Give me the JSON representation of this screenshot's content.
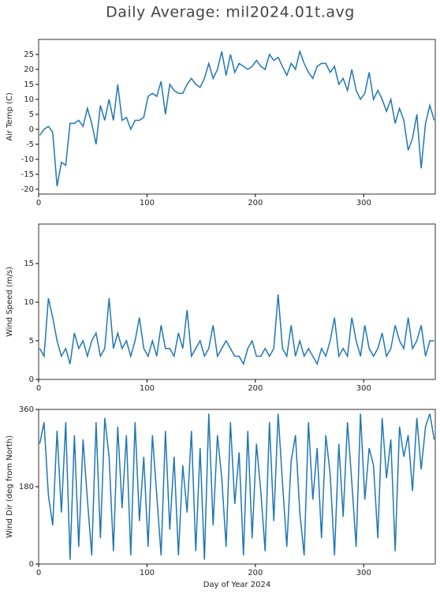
{
  "title": "Daily Average: mil2024.01t.avg",
  "chart_data": [
    {
      "type": "line",
      "ylabel": "Air Temp (C)",
      "color": "#1f77b4",
      "x": [
        1,
        5,
        9,
        13,
        17,
        21,
        25,
        29,
        33,
        37,
        41,
        45,
        49,
        53,
        57,
        61,
        65,
        69,
        73,
        77,
        81,
        85,
        89,
        93,
        97,
        101,
        105,
        109,
        113,
        117,
        121,
        125,
        129,
        133,
        137,
        141,
        145,
        149,
        153,
        157,
        161,
        165,
        169,
        173,
        177,
        181,
        185,
        189,
        193,
        197,
        201,
        205,
        209,
        213,
        217,
        221,
        225,
        229,
        233,
        237,
        241,
        245,
        249,
        253,
        257,
        261,
        265,
        269,
        273,
        277,
        281,
        285,
        289,
        293,
        297,
        301,
        305,
        309,
        313,
        317,
        321,
        325,
        329,
        333,
        337,
        341,
        345,
        349,
        353,
        357,
        361,
        365
      ],
      "values": [
        -2,
        0,
        1,
        -1,
        -19,
        -11,
        -12,
        2,
        2,
        3,
        1,
        7,
        2,
        -5,
        8,
        3,
        10,
        3,
        15,
        3,
        4,
        0,
        3,
        3,
        4,
        11,
        12,
        11,
        16,
        5,
        15,
        13,
        12,
        12,
        15,
        17,
        15,
        14,
        17,
        22,
        17,
        20,
        26,
        18,
        25,
        19,
        22,
        21,
        20,
        21,
        23,
        21,
        20,
        25,
        23,
        24,
        21,
        18,
        22,
        20,
        26,
        22,
        19,
        17,
        21,
        22,
        22,
        19,
        21,
        15,
        17,
        13,
        20,
        13,
        10,
        12,
        19,
        10,
        13,
        10,
        6,
        10,
        2,
        7,
        3,
        -7,
        -3,
        5,
        -13,
        2,
        8,
        3
      ],
      "xlim": [
        0,
        366
      ],
      "ylim": [
        -21.6,
        30
      ],
      "xticks": [
        0,
        100,
        200,
        300
      ],
      "yticks": [
        -20,
        -15,
        -10,
        -5,
        0,
        5,
        10,
        15,
        20,
        25
      ]
    },
    {
      "type": "line",
      "ylabel": "Wind Speed (m/s)",
      "color": "#1f77b4",
      "x": [
        1,
        5,
        9,
        13,
        17,
        21,
        25,
        29,
        33,
        37,
        41,
        45,
        49,
        53,
        57,
        61,
        65,
        69,
        73,
        77,
        81,
        85,
        89,
        93,
        97,
        101,
        105,
        109,
        113,
        117,
        121,
        125,
        129,
        133,
        137,
        141,
        145,
        149,
        153,
        157,
        161,
        165,
        169,
        173,
        177,
        181,
        185,
        189,
        193,
        197,
        201,
        205,
        209,
        213,
        217,
        221,
        225,
        229,
        233,
        237,
        241,
        245,
        249,
        253,
        257,
        261,
        265,
        269,
        273,
        277,
        281,
        285,
        289,
        293,
        297,
        301,
        305,
        309,
        313,
        317,
        321,
        325,
        329,
        333,
        337,
        341,
        345,
        349,
        353,
        357,
        361,
        365
      ],
      "values": [
        4,
        3,
        10.5,
        8,
        5,
        3,
        4,
        2,
        6,
        4,
        5,
        3,
        5,
        6,
        3,
        4,
        10.5,
        4,
        6,
        4,
        5,
        3,
        5,
        8,
        4,
        3,
        5,
        3,
        7,
        4,
        4,
        3,
        6,
        4,
        9,
        3,
        4,
        5,
        3,
        4,
        7,
        3,
        4,
        5,
        4,
        3,
        3,
        2,
        4,
        5,
        3,
        3,
        4,
        3,
        4,
        11,
        4,
        3,
        7,
        3,
        5,
        3,
        4,
        3,
        2,
        4,
        3,
        5,
        8,
        3,
        4,
        3,
        8,
        5,
        3,
        7,
        4,
        3,
        4,
        6,
        3,
        4,
        7,
        5,
        4,
        8,
        4,
        5,
        7,
        3,
        5,
        5
      ],
      "xlim": [
        0,
        366
      ],
      "ylim": [
        0,
        20.1
      ],
      "xticks": [
        0,
        100,
        200,
        300
      ],
      "yticks": [
        0,
        5,
        10,
        15
      ]
    },
    {
      "type": "line",
      "ylabel": "Wind Dir (deg from North)",
      "xlabel": "Day of Year 2024",
      "color": "#1f77b4",
      "x": [
        1,
        5,
        9,
        13,
        17,
        21,
        25,
        29,
        33,
        37,
        41,
        45,
        49,
        53,
        57,
        61,
        65,
        69,
        73,
        77,
        81,
        85,
        89,
        93,
        97,
        101,
        105,
        109,
        113,
        117,
        121,
        125,
        129,
        133,
        137,
        141,
        145,
        149,
        153,
        157,
        161,
        165,
        169,
        173,
        177,
        181,
        185,
        189,
        193,
        197,
        201,
        205,
        209,
        213,
        217,
        221,
        225,
        229,
        233,
        237,
        241,
        245,
        249,
        253,
        257,
        261,
        265,
        269,
        273,
        277,
        281,
        285,
        289,
        293,
        297,
        301,
        305,
        309,
        313,
        317,
        321,
        325,
        329,
        333,
        337,
        341,
        345,
        349,
        353,
        357,
        361,
        365
      ],
      "values": [
        280,
        330,
        160,
        90,
        310,
        120,
        330,
        10,
        300,
        40,
        290,
        150,
        20,
        330,
        60,
        340,
        250,
        30,
        320,
        130,
        300,
        20,
        330,
        100,
        250,
        40,
        300,
        160,
        20,
        310,
        80,
        250,
        20,
        230,
        120,
        310,
        30,
        270,
        10,
        350,
        90,
        300,
        200,
        40,
        330,
        140,
        260,
        20,
        310,
        60,
        280,
        170,
        30,
        330,
        100,
        350,
        190,
        40,
        240,
        300,
        120,
        20,
        330,
        150,
        270,
        60,
        300,
        210,
        20,
        280,
        110,
        330,
        190,
        40,
        350,
        150,
        270,
        230,
        60,
        340,
        200,
        290,
        30,
        320,
        250,
        300,
        170,
        340,
        220,
        320,
        350,
        290
      ],
      "xlim": [
        0,
        366
      ],
      "ylim": [
        0,
        360
      ],
      "xticks": [
        0,
        100,
        200,
        300
      ],
      "yticks": [
        0,
        180,
        360
      ]
    }
  ]
}
